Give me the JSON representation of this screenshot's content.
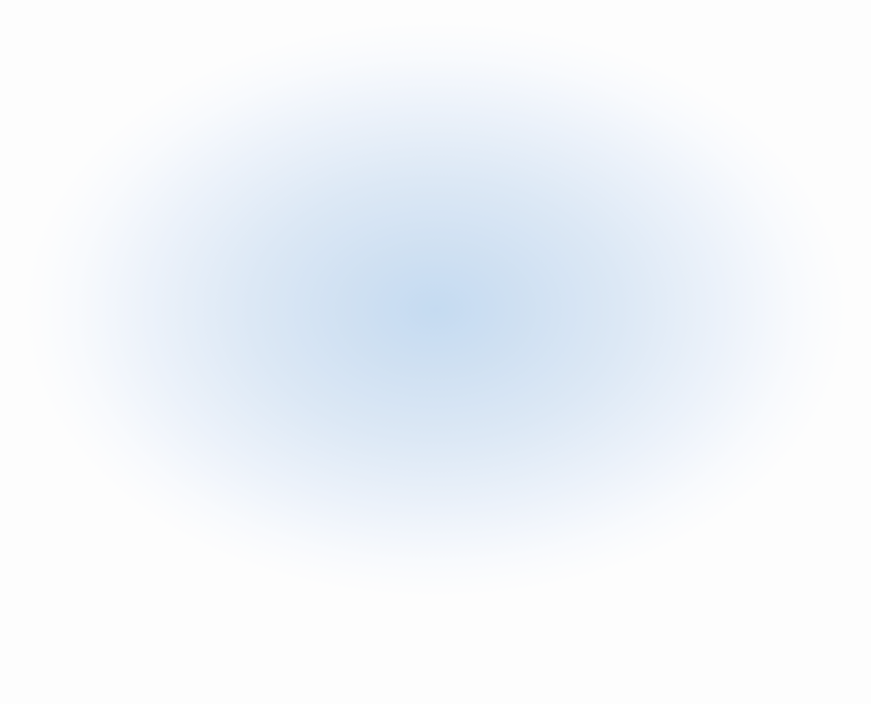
{
  "background": {
    "center_color": "#c5dbf1",
    "edge_color": "#fdfdfd"
  }
}
